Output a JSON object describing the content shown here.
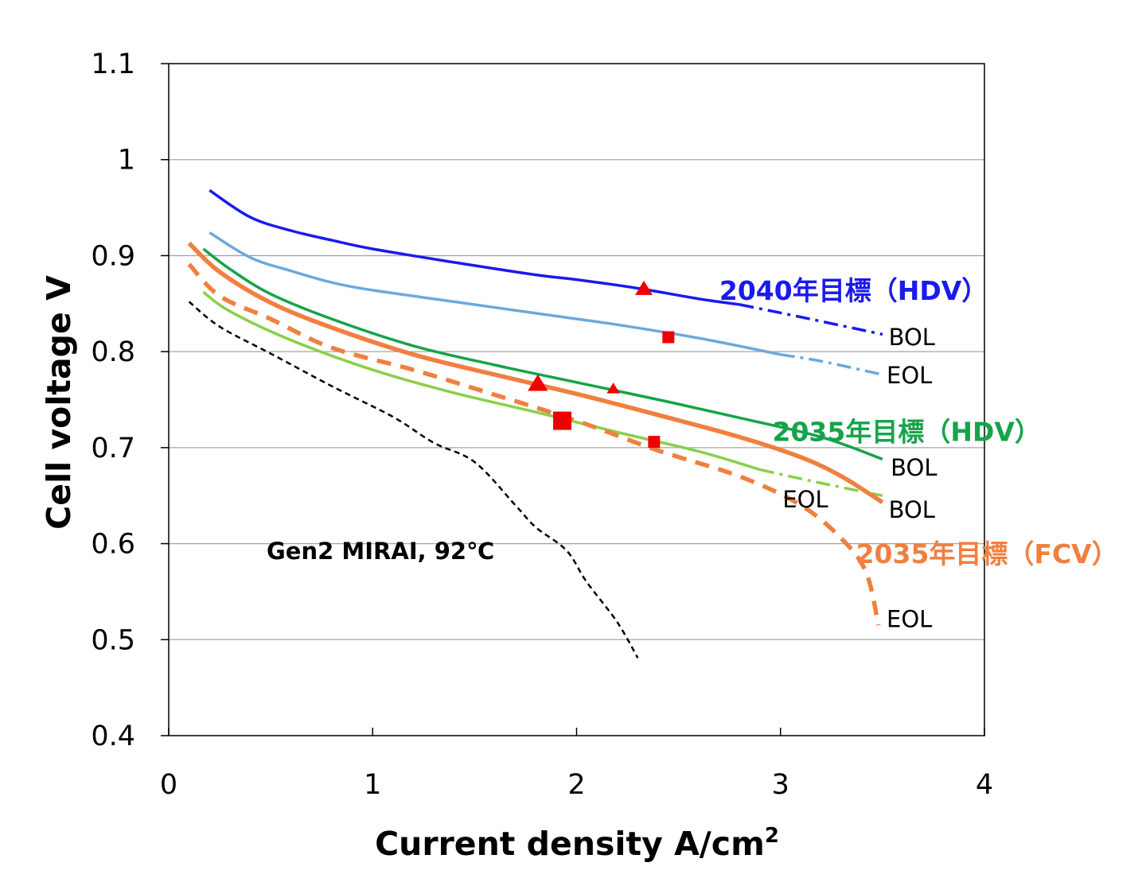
{
  "chart_data": {
    "type": "line",
    "title": "",
    "xlabel": "Current density A/cm",
    "xlabel_superscript": "2",
    "ylabel": "Cell voltage V",
    "xlim": [
      0,
      4
    ],
    "ylim": [
      0.4,
      1.1
    ],
    "x_ticks": [
      "0",
      "1",
      "2",
      "3",
      "4"
    ],
    "y_ticks": [
      "0.4",
      "0.5",
      "0.6",
      "0.7",
      "0.8",
      "0.9",
      "1",
      "1.1"
    ],
    "grid": "horizontal",
    "colors": {
      "blue": "#1a1aee",
      "light_blue": "#6ea8dc",
      "green": "#17a34a",
      "light_green": "#8ccf4a",
      "orange": "#f08040",
      "black": "#000000",
      "marker": "#ee0000"
    },
    "series": [
      {
        "name": "2040 BOL",
        "color": "#1a1aee",
        "style": "solid",
        "points": [
          [
            0.2,
            0.968
          ],
          [
            0.4,
            0.94
          ],
          [
            0.6,
            0.926
          ],
          [
            0.8,
            0.916
          ],
          [
            1.0,
            0.907
          ],
          [
            1.4,
            0.893
          ],
          [
            1.8,
            0.88
          ],
          [
            2.0,
            0.875
          ],
          [
            2.3,
            0.866
          ],
          [
            2.6,
            0.855
          ],
          [
            2.8,
            0.849
          ]
        ]
      },
      {
        "name": "2040 BOL (extrapolated)",
        "color": "#1a1aee",
        "style": "dashdot",
        "points": [
          [
            2.8,
            0.849
          ],
          [
            3.1,
            0.836
          ],
          [
            3.5,
            0.818
          ]
        ]
      },
      {
        "name": "2040 EOL",
        "color": "#6ea8dc",
        "style": "solid",
        "points": [
          [
            0.2,
            0.924
          ],
          [
            0.4,
            0.898
          ],
          [
            0.6,
            0.884
          ],
          [
            0.8,
            0.872
          ],
          [
            1.0,
            0.864
          ],
          [
            1.4,
            0.852
          ],
          [
            1.8,
            0.84
          ],
          [
            2.2,
            0.828
          ],
          [
            2.6,
            0.814
          ],
          [
            3.0,
            0.797
          ]
        ]
      },
      {
        "name": "2040 EOL (extrapolated)",
        "color": "#6ea8dc",
        "style": "dashdot",
        "points": [
          [
            3.0,
            0.797
          ],
          [
            3.2,
            0.79
          ],
          [
            3.5,
            0.776
          ]
        ]
      },
      {
        "name": "2035 HDV BOL",
        "color": "#17a34a",
        "style": "solid",
        "points": [
          [
            0.17,
            0.907
          ],
          [
            0.3,
            0.886
          ],
          [
            0.5,
            0.86
          ],
          [
            0.8,
            0.834
          ],
          [
            1.2,
            0.806
          ],
          [
            1.6,
            0.786
          ],
          [
            2.0,
            0.768
          ],
          [
            2.4,
            0.75
          ],
          [
            2.8,
            0.731
          ],
          [
            3.2,
            0.711
          ],
          [
            3.5,
            0.688
          ]
        ]
      },
      {
        "name": "2035 HDV EOL",
        "color": "#8ccf4a",
        "style": "solid",
        "points": [
          [
            0.17,
            0.862
          ],
          [
            0.3,
            0.842
          ],
          [
            0.6,
            0.812
          ],
          [
            1.0,
            0.781
          ],
          [
            1.4,
            0.757
          ],
          [
            1.8,
            0.737
          ],
          [
            2.2,
            0.716
          ],
          [
            2.6,
            0.696
          ],
          [
            2.9,
            0.677
          ]
        ]
      },
      {
        "name": "2035 HDV EOL (extrapolated)",
        "color": "#8ccf4a",
        "style": "dashdot",
        "points": [
          [
            2.9,
            0.677
          ],
          [
            3.2,
            0.663
          ],
          [
            3.5,
            0.65
          ]
        ]
      },
      {
        "name": "2035 FCV BOL",
        "color": "#f08040",
        "style": "solid-thick",
        "points": [
          [
            0.1,
            0.913
          ],
          [
            0.25,
            0.883
          ],
          [
            0.5,
            0.851
          ],
          [
            0.8,
            0.825
          ],
          [
            1.2,
            0.797
          ],
          [
            1.6,
            0.776
          ],
          [
            2.0,
            0.756
          ],
          [
            2.4,
            0.734
          ],
          [
            2.8,
            0.711
          ],
          [
            3.1,
            0.69
          ],
          [
            3.3,
            0.67
          ],
          [
            3.5,
            0.643
          ]
        ]
      },
      {
        "name": "2035 FCV EOL",
        "color": "#f08040",
        "style": "dashed-thick",
        "points": [
          [
            0.1,
            0.891
          ],
          [
            0.25,
            0.858
          ],
          [
            0.5,
            0.834
          ],
          [
            0.8,
            0.804
          ],
          [
            1.2,
            0.781
          ],
          [
            1.6,
            0.755
          ],
          [
            2.0,
            0.728
          ],
          [
            2.4,
            0.697
          ],
          [
            2.8,
            0.67
          ],
          [
            3.1,
            0.64
          ],
          [
            3.3,
            0.605
          ],
          [
            3.42,
            0.57
          ],
          [
            3.48,
            0.515
          ]
        ]
      },
      {
        "name": "Gen2 MIRAI, 92℃",
        "color": "#000000",
        "style": "dashed-thin",
        "points": [
          [
            0.1,
            0.852
          ],
          [
            0.25,
            0.826
          ],
          [
            0.5,
            0.798
          ],
          [
            0.8,
            0.764
          ],
          [
            1.1,
            0.732
          ],
          [
            1.3,
            0.705
          ],
          [
            1.5,
            0.685
          ],
          [
            1.7,
            0.64
          ],
          [
            1.8,
            0.617
          ],
          [
            1.95,
            0.593
          ],
          [
            2.05,
            0.56
          ],
          [
            2.2,
            0.518
          ],
          [
            2.3,
            0.481
          ]
        ]
      }
    ],
    "markers": [
      {
        "shape": "triangle",
        "x": 2.33,
        "y": 0.865,
        "size": "medium"
      },
      {
        "shape": "square",
        "x": 2.45,
        "y": 0.815,
        "size": "small"
      },
      {
        "shape": "triangle",
        "x": 1.81,
        "y": 0.766,
        "size": "large"
      },
      {
        "shape": "triangle",
        "x": 2.18,
        "y": 0.761,
        "size": "small"
      },
      {
        "shape": "square",
        "x": 1.93,
        "y": 0.728,
        "size": "large"
      },
      {
        "shape": "square",
        "x": 2.38,
        "y": 0.706,
        "size": "small"
      }
    ],
    "annotations": [
      {
        "id": "a2040",
        "text": "2040年目標（HDV）",
        "x": 2.7,
        "y": 0.863,
        "color": "#1a1aee",
        "style": "big"
      },
      {
        "id": "bol2040",
        "text": "BOL",
        "x": 3.53,
        "y": 0.816,
        "color": "#000000",
        "style": "normal"
      },
      {
        "id": "eol2040",
        "text": "EOL",
        "x": 3.52,
        "y": 0.776,
        "color": "#000000",
        "style": "normal"
      },
      {
        "id": "a2035hdv",
        "text": "2035年目標（HDV）",
        "x": 2.96,
        "y": 0.716,
        "color": "#17a34a",
        "style": "big"
      },
      {
        "id": "bol2035hdv",
        "text": "BOL",
        "x": 3.54,
        "y": 0.68,
        "color": "#000000",
        "style": "normal"
      },
      {
        "id": "eol2035hdv",
        "text": "EOL",
        "x": 3.01,
        "y": 0.647,
        "color": "#000000",
        "style": "normal"
      },
      {
        "id": "bol2035fcv",
        "text": "BOL",
        "x": 3.53,
        "y": 0.636,
        "color": "#000000",
        "style": "normal"
      },
      {
        "id": "a2035fcv",
        "text": "2035年目標（FCV）",
        "x": 3.37,
        "y": 0.589,
        "color": "#f08040",
        "style": "huge"
      },
      {
        "id": "eol2035fcv",
        "text": "EOL",
        "x": 3.52,
        "y": 0.522,
        "color": "#000000",
        "style": "normal"
      },
      {
        "id": "mirai",
        "text": "Gen2 MIRAI, 92℃",
        "x": 0.48,
        "y": 0.593,
        "color": "#000000",
        "style": "bold-small"
      }
    ]
  }
}
